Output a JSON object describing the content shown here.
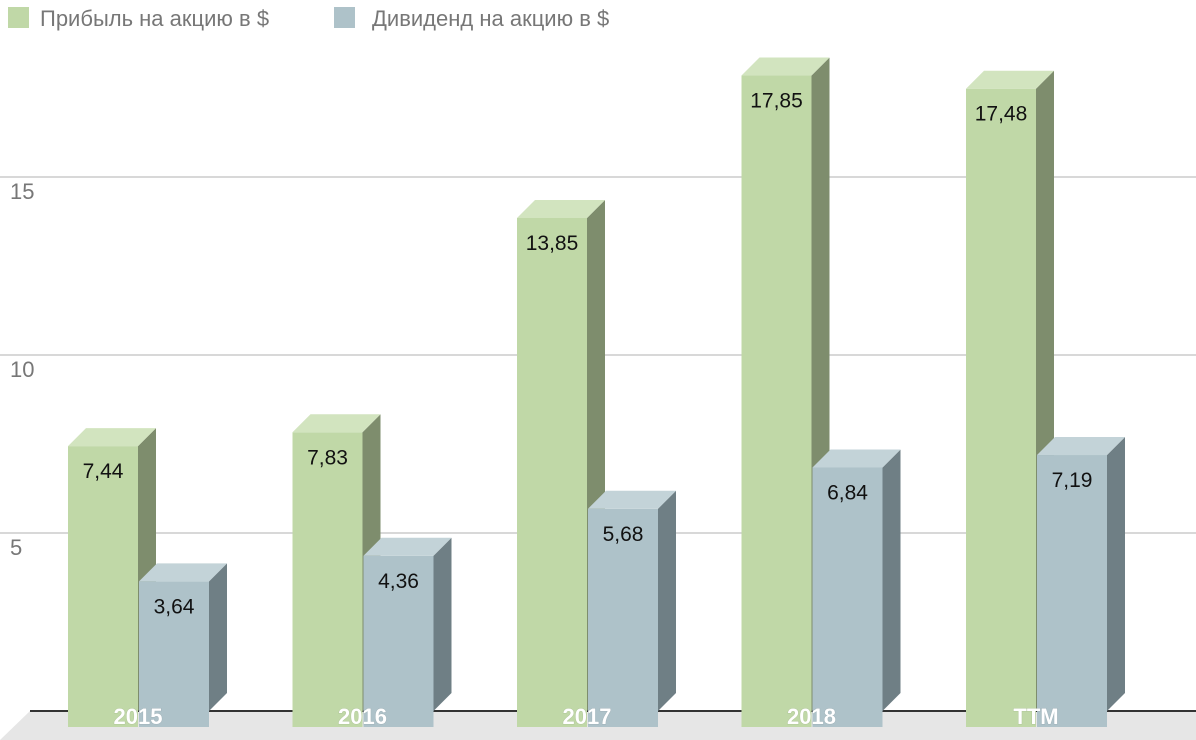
{
  "chart_data": {
    "type": "bar",
    "categories": [
      "2015",
      "2016",
      "2017",
      "2018",
      "TTM"
    ],
    "series": [
      {
        "name": "Прибыль на акцию в $",
        "values": [
          7.44,
          7.83,
          13.85,
          17.85,
          17.48
        ],
        "labels": [
          "7,44",
          "7,83",
          "13,85",
          "17,85",
          "17,48"
        ]
      },
      {
        "name": "Дивиденд на акцию в $",
        "values": [
          3.64,
          4.36,
          5.68,
          6.84,
          7.19
        ],
        "labels": [
          "3,64",
          "4,36",
          "5,68",
          "6,84",
          "7,19"
        ]
      }
    ],
    "yticks": [
      5,
      10,
      15
    ],
    "ylim": [
      0,
      20
    ],
    "grid": true,
    "legend_position": "top-left",
    "style": "3d-bar"
  },
  "colors": {
    "series": [
      {
        "front": "#c0d8a7",
        "top": "#d2e4bf",
        "side": "#7e8d6d"
      },
      {
        "front": "#aec2c9",
        "top": "#c3d3d8",
        "side": "#6f7f85"
      }
    ],
    "grid": "#cccccc",
    "floor": "#e6e6e6"
  }
}
